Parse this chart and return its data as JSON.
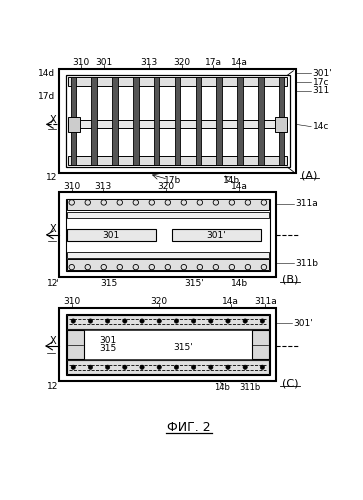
{
  "title": "ФИГ. 2",
  "background_color": "#ffffff",
  "line_color": "#000000",
  "fig_width": 3.63,
  "fig_height": 5.0,
  "dpi": 100,
  "panel_A": {
    "outer": [
      18,
      335,
      305,
      135
    ],
    "labels_top": [
      [
        "310",
        0.1
      ],
      [
        "301",
        0.2
      ],
      [
        "313",
        0.38
      ],
      [
        "320",
        0.52
      ],
      [
        "17a",
        0.65
      ],
      [
        "14a",
        0.76
      ]
    ],
    "labels_right": [
      [
        "301'",
        0.93
      ],
      [
        "17c",
        0.82
      ],
      [
        "311",
        0.72
      ],
      [
        "14c",
        0.5
      ]
    ],
    "labels_left": [
      [
        "14d",
        0.92
      ],
      [
        "17d",
        0.68
      ],
      [
        "12",
        0.05
      ]
    ],
    "labels_bottom": [
      [
        "17b",
        0.48
      ],
      [
        "14b",
        0.73
      ]
    ],
    "n_bars": 11
  },
  "panel_B": {
    "outer": [
      18,
      182,
      280,
      110
    ],
    "labels_top": [
      [
        "310",
        0.06
      ],
      [
        "313",
        0.2
      ],
      [
        "320",
        0.5
      ],
      [
        "14a",
        0.83
      ]
    ],
    "labels_right": [
      [
        "311a",
        0.82
      ],
      [
        "311b",
        0.18
      ]
    ],
    "labels_bottom": [
      [
        "12",
        0.0
      ],
      [
        "315",
        0.23
      ],
      [
        "315'",
        0.62
      ],
      [
        "14b",
        0.83
      ]
    ]
  },
  "panel_C": {
    "outer": [
      18,
      335,
      280,
      90
    ],
    "labels_top": [
      [
        "310",
        0.06
      ],
      [
        "320",
        0.46
      ],
      [
        "14a",
        0.8
      ],
      [
        "311a",
        0.95
      ]
    ],
    "labels_right": [
      [
        "301'",
        0.8
      ]
    ],
    "labels_bottom": [
      [
        "12",
        0.0
      ],
      [
        "14b",
        0.75
      ],
      [
        "311b",
        0.88
      ]
    ]
  }
}
